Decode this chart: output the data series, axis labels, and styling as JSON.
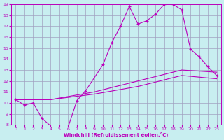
{
  "xlabel": "Windchill (Refroidissement éolien,°C)",
  "bg_color": "#c8eef0",
  "line_color": "#bb00bb",
  "grid_color": "#a0a0c0",
  "xlim": [
    -0.5,
    23.5
  ],
  "ylim": [
    8,
    19
  ],
  "xticks": [
    0,
    1,
    2,
    3,
    4,
    5,
    6,
    7,
    8,
    9,
    10,
    11,
    12,
    13,
    14,
    15,
    16,
    17,
    18,
    19,
    20,
    21,
    22,
    23
  ],
  "yticks": [
    8,
    9,
    10,
    11,
    12,
    13,
    14,
    15,
    16,
    17,
    18,
    19
  ],
  "series": [
    {
      "x": [
        0,
        1,
        2,
        3,
        4,
        5,
        6,
        7,
        8,
        10,
        11,
        12,
        13,
        14,
        15,
        16,
        17,
        18,
        19,
        20,
        21,
        22,
        23
      ],
      "y": [
        10.3,
        9.8,
        10.0,
        8.6,
        7.9,
        7.8,
        7.8,
        10.2,
        11.1,
        13.5,
        15.5,
        17.0,
        18.8,
        17.2,
        17.5,
        18.1,
        19.0,
        19.0,
        18.5,
        14.9,
        14.2,
        13.3,
        12.5
      ],
      "marker": true
    },
    {
      "x": [
        0,
        4,
        9,
        14,
        19,
        23
      ],
      "y": [
        10.3,
        10.3,
        11.0,
        12.0,
        13.0,
        12.8
      ],
      "marker": false
    },
    {
      "x": [
        0,
        4,
        9,
        14,
        19,
        23
      ],
      "y": [
        10.3,
        10.3,
        10.8,
        11.5,
        12.5,
        12.2
      ],
      "marker": false
    }
  ]
}
